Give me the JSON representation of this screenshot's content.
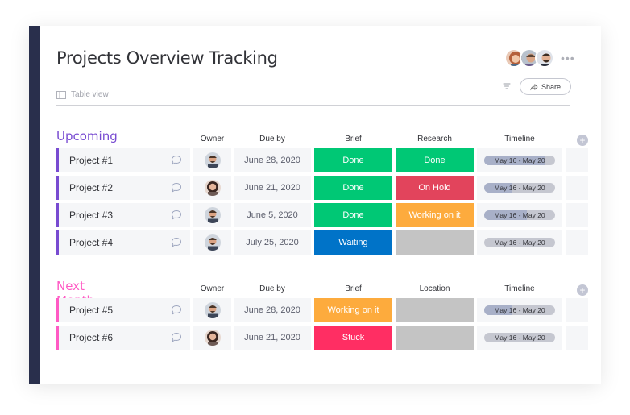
{
  "board": {
    "title": "Projects Overview Tracking",
    "view_label": "Table view",
    "share_label": "Share",
    "more_label": "•••"
  },
  "colors": {
    "done": "#00c875",
    "on_hold": "#e2445c",
    "working": "#fdab3d",
    "waiting": "#0073c8",
    "stuck": "#ff2e63",
    "empty": "#c4c4c4",
    "upcoming_accent": "#7e3bbf",
    "next_accent": "#ff5ac4"
  },
  "groups": [
    {
      "title": "Upcoming",
      "color": "#784bd1",
      "columns": {
        "owner": "Owner",
        "due": "Due by",
        "s1": "Brief",
        "s2": "Research",
        "timeline": "Timeline",
        "add": "+"
      },
      "rows": [
        {
          "name": "Project #1",
          "owner_icon": "man-avatar-icon",
          "due": "June 28, 2020",
          "s1": "Done",
          "s1_color": "#00c875",
          "s2": "Done",
          "s2_color": "#00c875",
          "timeline": "May 16 - May 20",
          "progress": 0.85
        },
        {
          "name": "Project #2",
          "owner_icon": "woman-avatar-icon",
          "due": "June 21, 2020",
          "s1": "Done",
          "s1_color": "#00c875",
          "s2": "On Hold",
          "s2_color": "#e2445c",
          "timeline": "May 16 - May 20",
          "progress": 0.4
        },
        {
          "name": "Project #3",
          "owner_icon": "man-avatar-icon",
          "due": "June 5, 2020",
          "s1": "Done",
          "s1_color": "#00c875",
          "s2": "Working on it",
          "s2_color": "#fdab3d",
          "timeline": "May 16 - May 20",
          "progress": 0.6
        },
        {
          "name": "Project #4",
          "owner_icon": "man-avatar-icon",
          "due": "July 25, 2020",
          "s1": "Waiting",
          "s1_color": "#0073c8",
          "s2": "",
          "s2_color": "#c4c4c4",
          "timeline": "May 16 - May 20",
          "progress": 0.0
        }
      ]
    },
    {
      "title": "Next Month",
      "color": "#ff5ac4",
      "columns": {
        "owner": "Owner",
        "due": "Due by",
        "s1": "Brief",
        "s2": "Location",
        "timeline": "Timeline",
        "add": "+"
      },
      "rows": [
        {
          "name": "Project #5",
          "owner_icon": "man-avatar-icon",
          "due": "June 28, 2020",
          "s1": "Working on it",
          "s1_color": "#fdab3d",
          "s2": "",
          "s2_color": "#c4c4c4",
          "timeline": "May 16 - May 20",
          "progress": 0.4
        },
        {
          "name": "Project #6",
          "owner_icon": "woman-avatar-icon",
          "due": "June 21, 2020",
          "s1": "Stuck",
          "s1_color": "#ff2e63",
          "s2": "",
          "s2_color": "#c4c4c4",
          "timeline": "May 16 - May 20",
          "progress": 0.0
        }
      ]
    }
  ]
}
